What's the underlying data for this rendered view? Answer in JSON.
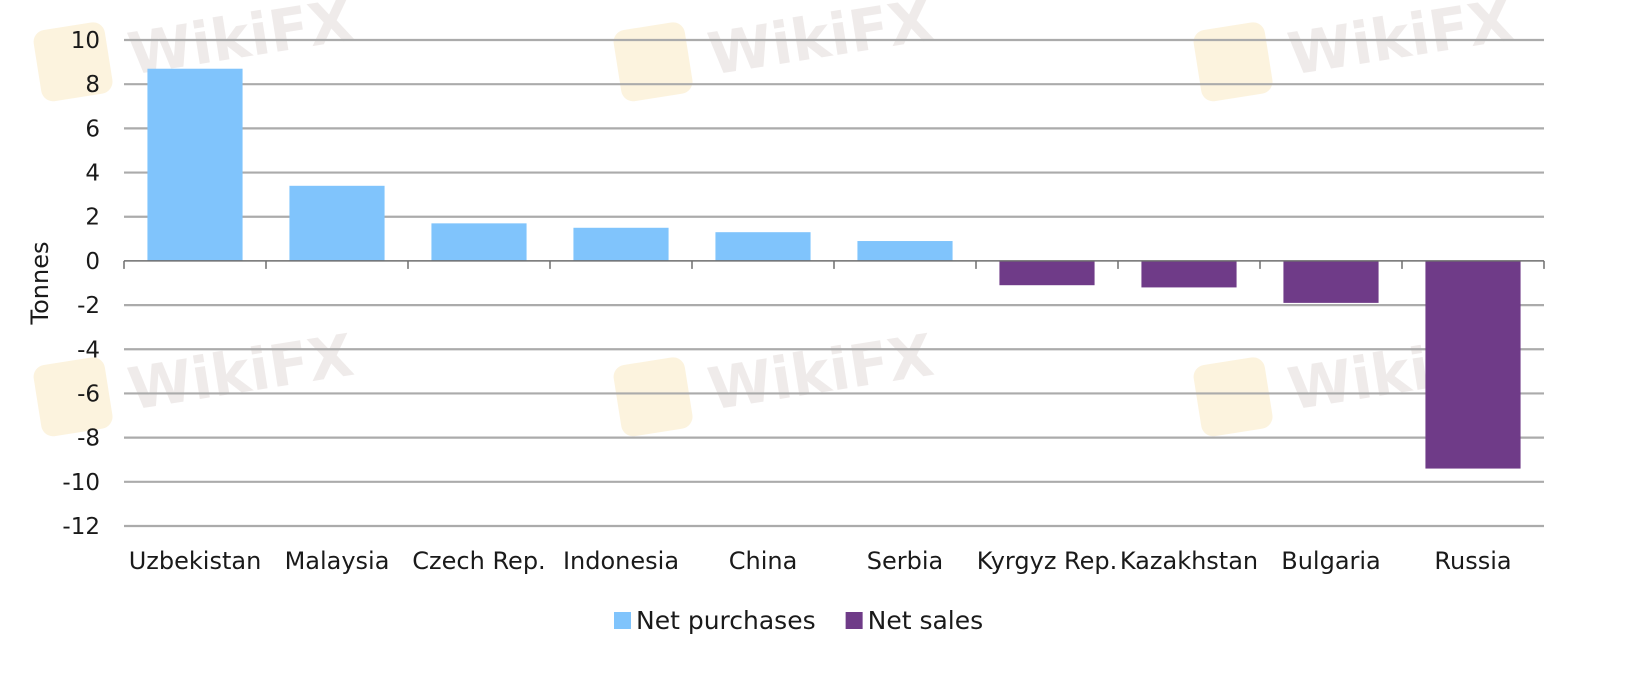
{
  "watermark": {
    "text": "WikiFX",
    "colors": {
      "logo": "#f5d48a",
      "text": "#b9a7a3"
    }
  },
  "chart_data": {
    "type": "bar",
    "title": "",
    "xlabel": "",
    "ylabel": "Tonnes",
    "ylim": [
      -12,
      10
    ],
    "yticks": [
      10,
      8,
      6,
      4,
      2,
      0,
      -2,
      -4,
      -6,
      -8,
      -10,
      -12
    ],
    "grid": true,
    "legend_position": "bottom",
    "categories": [
      "Uzbekistan",
      "Malaysia",
      "Czech Rep.",
      "Indonesia",
      "China",
      "Serbia",
      "Kyrgyz Rep.",
      "Kazakhstan",
      "Bulgaria",
      "Russia"
    ],
    "series": [
      {
        "name": "Net purchases",
        "color": "#80c4fc",
        "values": [
          8.7,
          3.4,
          1.7,
          1.5,
          1.3,
          0.9,
          null,
          null,
          null,
          null
        ]
      },
      {
        "name": "Net sales",
        "color": "#6f3b88",
        "values": [
          null,
          null,
          null,
          null,
          null,
          null,
          -1.1,
          -1.2,
          -1.9,
          -9.4
        ]
      }
    ]
  }
}
